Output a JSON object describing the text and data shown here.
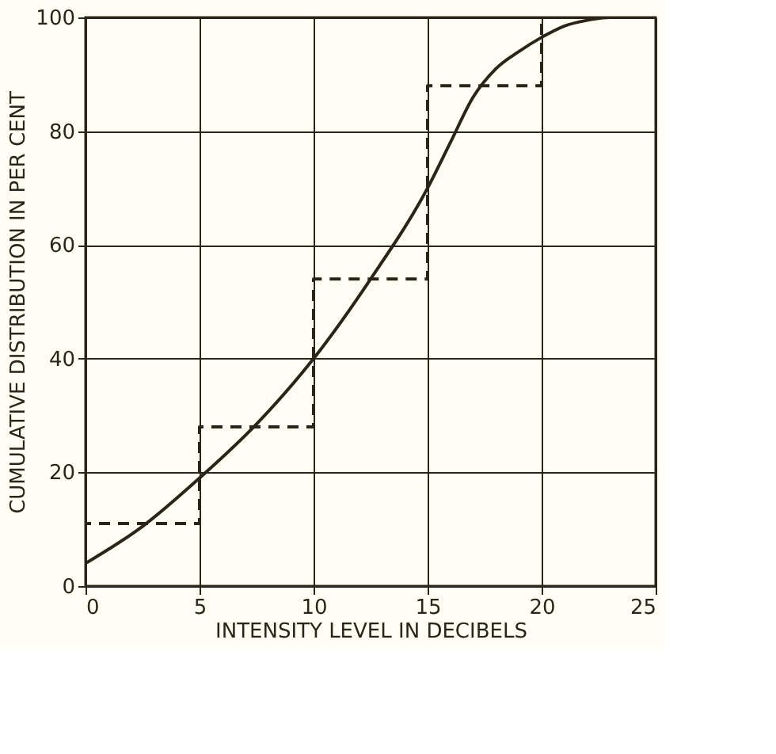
{
  "chart_data": {
    "type": "line",
    "xlabel": "INTENSITY LEVEL IN DECIBELS",
    "ylabel": "CUMULATIVE DISTRIBUTION IN PER CENT",
    "xlim": [
      0,
      25
    ],
    "ylim": [
      0,
      100
    ],
    "xticks": [
      0,
      5,
      10,
      15,
      20,
      25
    ],
    "yticks": [
      0,
      20,
      40,
      60,
      80,
      100
    ],
    "grid": true,
    "series": [
      {
        "line_style": "solid",
        "color": "#2b2418",
        "x": [
          0,
          2.5,
          5,
          7.5,
          10,
          12.5,
          15,
          16,
          17,
          18,
          19,
          20,
          21,
          22,
          23,
          25
        ],
        "values": [
          4,
          10.5,
          19,
          28.5,
          40,
          54,
          70,
          78,
          86,
          91,
          94,
          96.5,
          98.5,
          99.5,
          100,
          100
        ]
      },
      {
        "type": "step",
        "line_style": "dashed",
        "color": "#2b2418",
        "x": [
          0,
          0,
          5,
          10,
          15,
          20,
          25
        ],
        "values": [
          0,
          11,
          28,
          54,
          88,
          100,
          100
        ]
      }
    ]
  }
}
